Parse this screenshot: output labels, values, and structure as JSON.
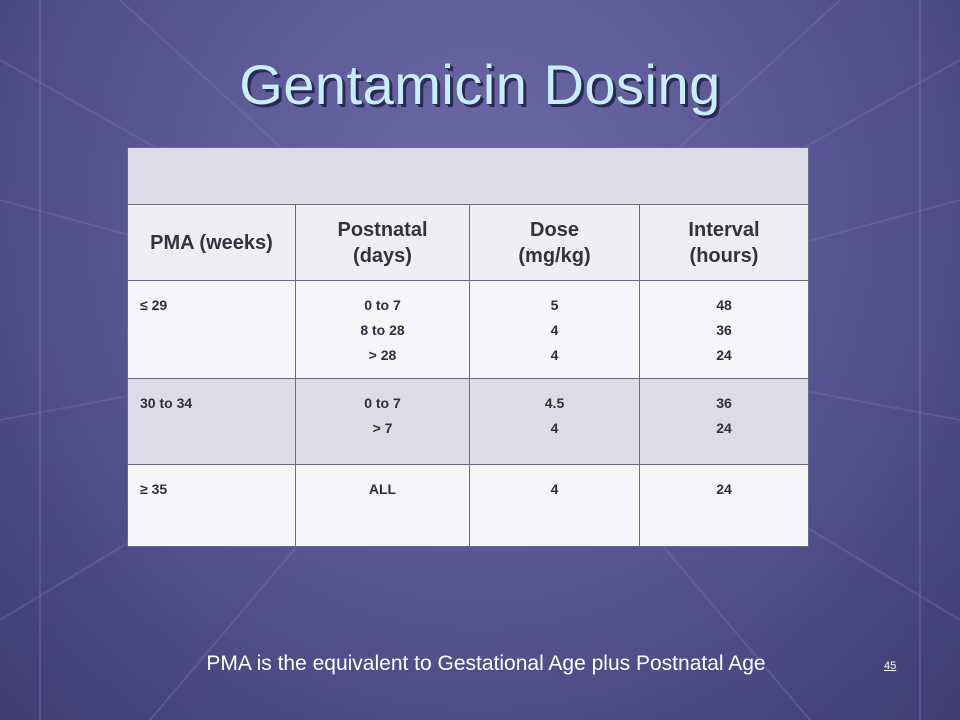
{
  "slide": {
    "title": "Gentamicin Dosing",
    "footnote": "PMA is the equivalent to Gestational Age plus Postnatal Age",
    "page_number": "45"
  },
  "table": {
    "headers": {
      "pma": "PMA (weeks)",
      "postnatal_1": "Postnatal",
      "postnatal_2": "(days)",
      "dose_1": "Dose",
      "dose_2": "(mg/kg)",
      "interval_1": "Interval",
      "interval_2": "(hours)"
    },
    "rows": [
      {
        "pma": "≤ 29",
        "postnatal": [
          "0 to 7",
          "8 to 28",
          "> 28"
        ],
        "dose": [
          "5",
          "4",
          "4"
        ],
        "interval": [
          "48",
          "36",
          "24"
        ]
      },
      {
        "pma": "30 to 34",
        "postnatal": [
          "0 to 7",
          "> 7"
        ],
        "dose": [
          "4.5",
          "4"
        ],
        "interval": [
          "36",
          "24"
        ]
      },
      {
        "pma": "≥ 35",
        "postnatal": [
          "ALL"
        ],
        "dose": [
          "4"
        ],
        "interval": [
          "24"
        ]
      }
    ]
  },
  "colors": {
    "title": "#c9eefb",
    "background": "#5c5896",
    "row_shaded": "#dcdbe7",
    "row_light": "#f6f6f9"
  }
}
